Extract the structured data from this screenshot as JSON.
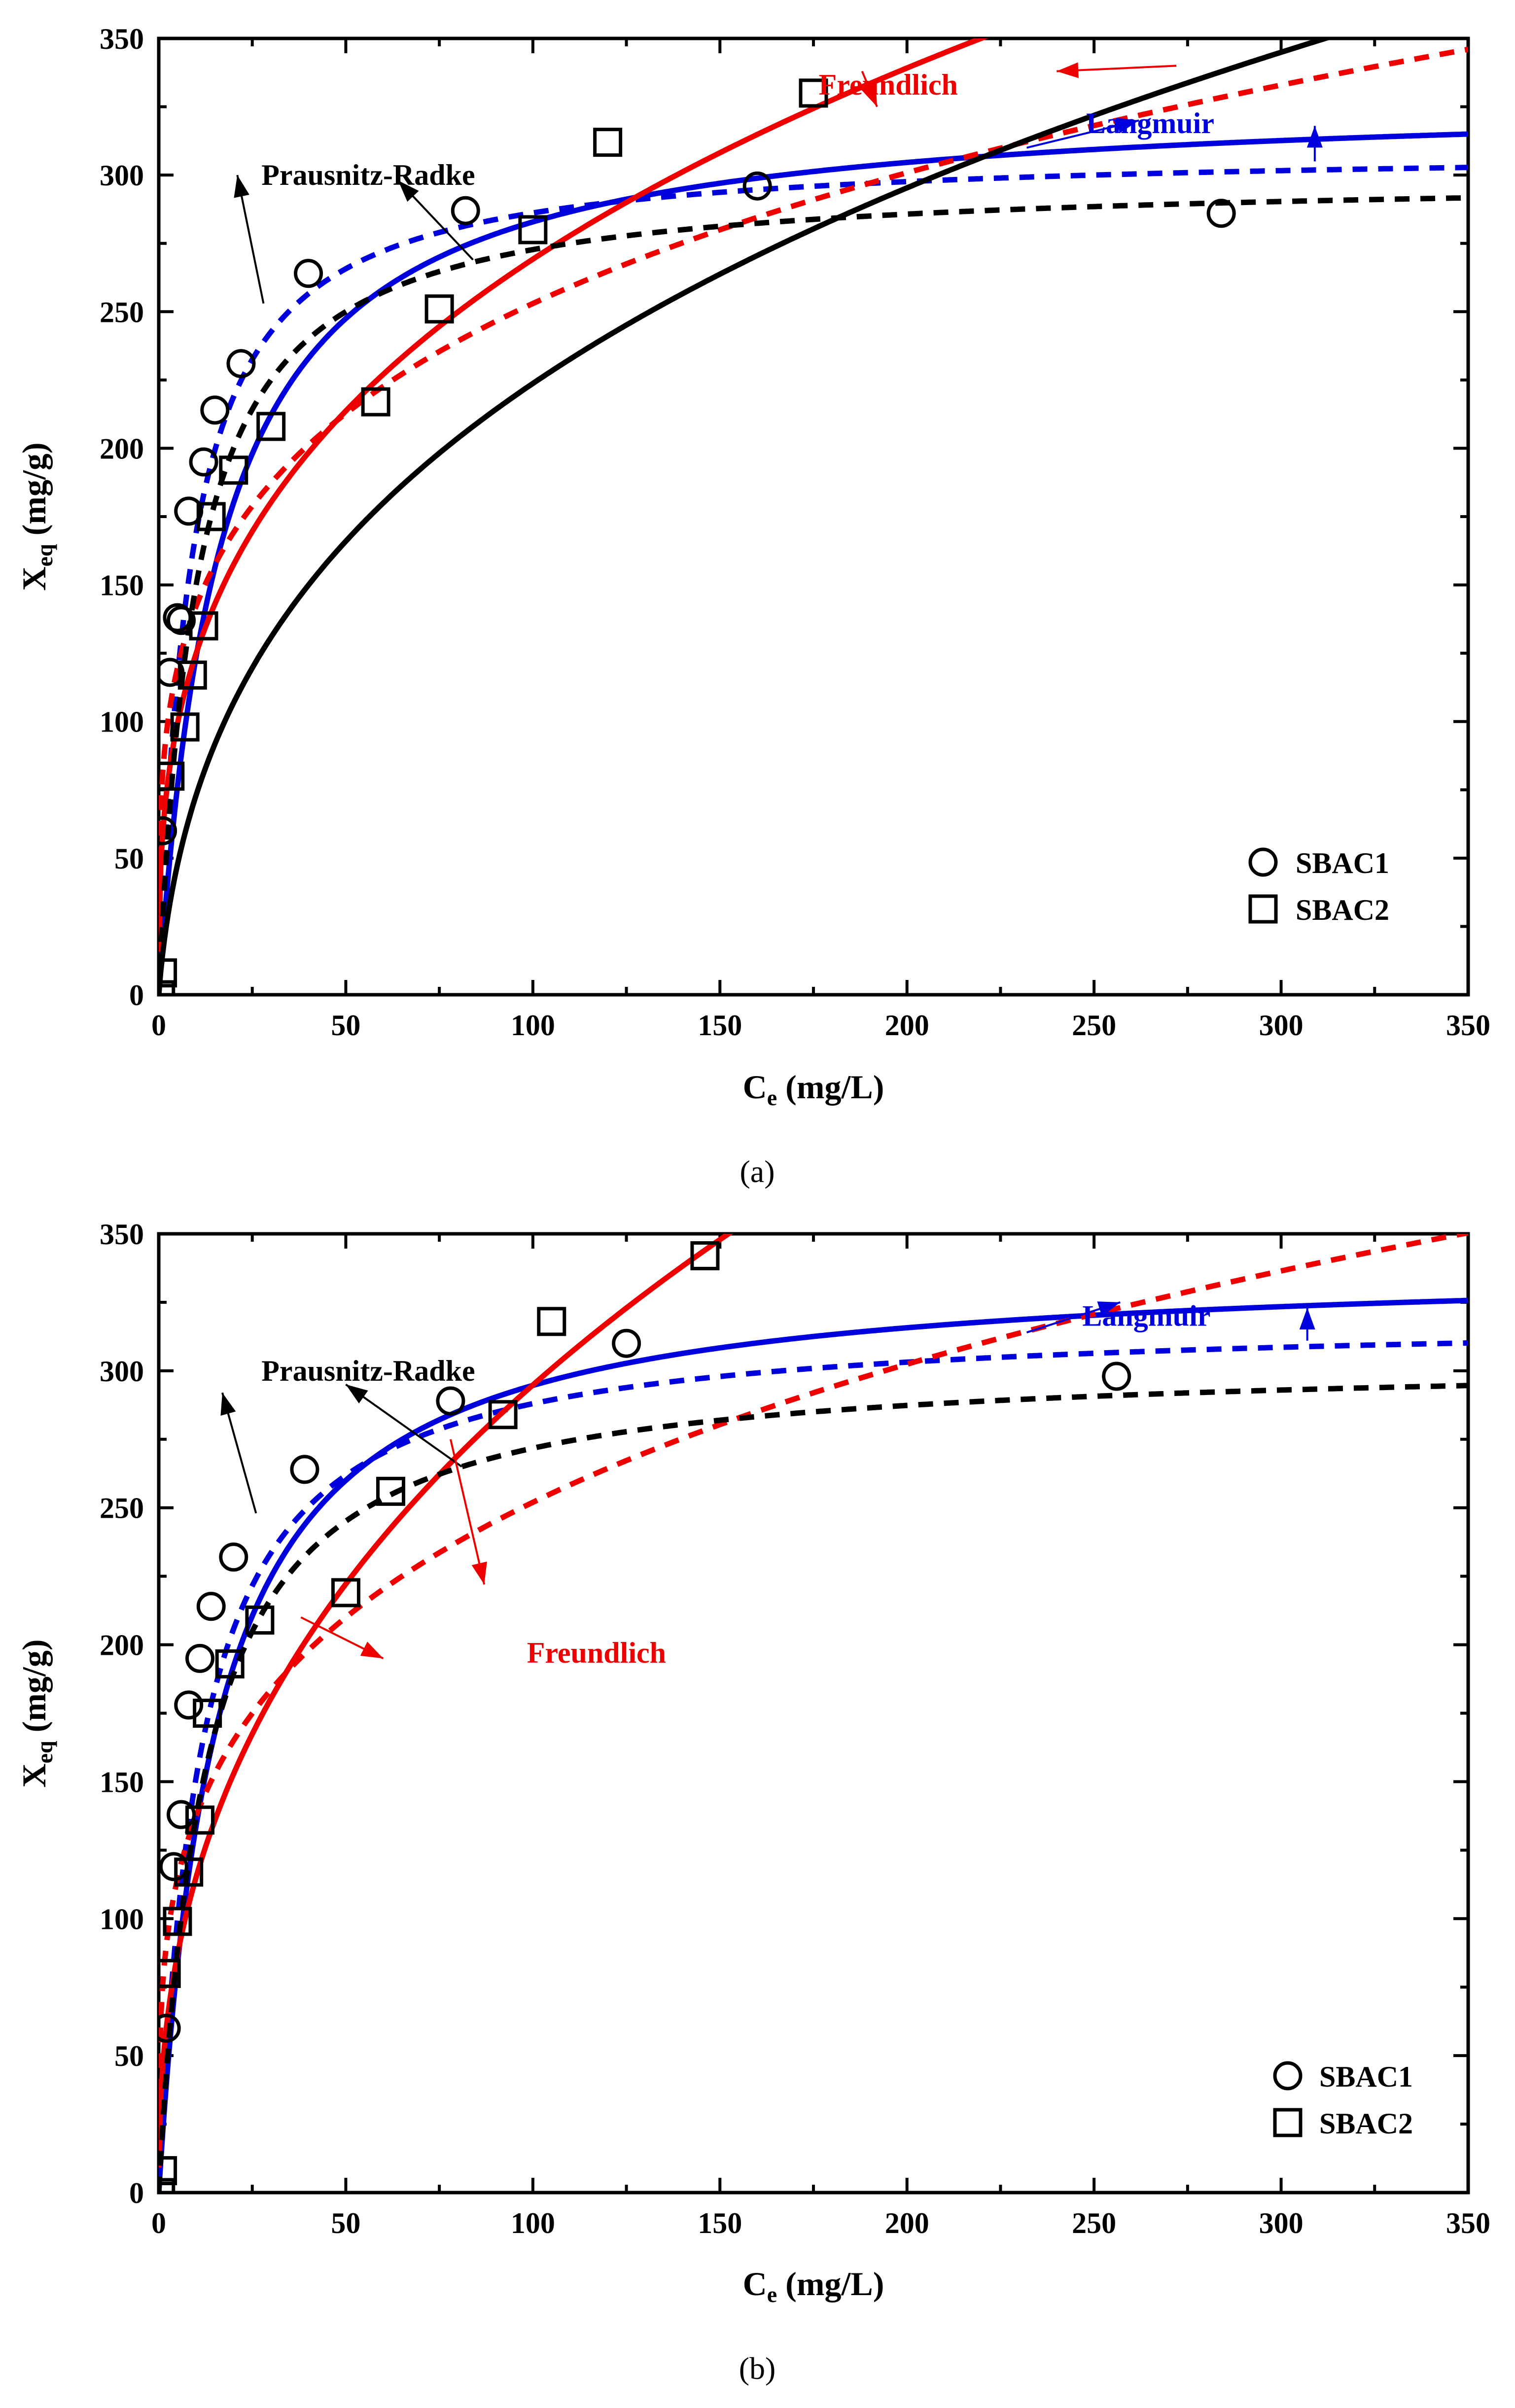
{
  "chart_data": [
    {
      "type": "scatter",
      "panel_label": "(a)",
      "xlabel": "Ce (mg/L)",
      "xlabel_main": "C",
      "xlabel_sub": "e",
      "xlabel_unit": " (mg/L)",
      "ylabel": "Xeq (mg/g)",
      "ylabel_main": "X",
      "ylabel_sub": "eq",
      "ylabel_unit": " (mg/g)",
      "xlim": [
        0,
        350
      ],
      "ylim": [
        0,
        350
      ],
      "xticks": [
        "0",
        "50",
        "100",
        "150",
        "200",
        "250",
        "300",
        "350"
      ],
      "yticks": [
        "0",
        "50",
        "100",
        "150",
        "200",
        "250",
        "300",
        "350"
      ],
      "legend_position": "bottom-right",
      "series": [
        {
          "name": "SBAC1",
          "kind": "points",
          "marker": "circle",
          "color": "#000000",
          "x": [
            1,
            3,
            5,
            6,
            8,
            12,
            15,
            22,
            40,
            82,
            160,
            284
          ],
          "y": [
            60,
            118,
            138,
            137,
            177,
            195,
            214,
            231,
            264,
            287,
            296,
            286
          ]
        },
        {
          "name": "SBAC2",
          "kind": "points",
          "marker": "square",
          "color": "#000000",
          "x": [
            0.5,
            1,
            3,
            7,
            9,
            12,
            14,
            20,
            30,
            58,
            75,
            100,
            120,
            175
          ],
          "y": [
            0,
            8,
            80,
            98,
            117,
            135,
            175,
            192,
            208,
            217,
            251,
            280,
            312,
            330
          ]
        },
        {
          "name": "Langmuir fit SBAC1",
          "kind": "langmuir",
          "style": "dashed",
          "color": "#0000dd",
          "qm": 310,
          "KL": 0.12
        },
        {
          "name": "Langmuir fit SBAC2",
          "kind": "langmuir",
          "style": "solid",
          "color": "#0000dd",
          "qm": 330,
          "KL": 0.06
        },
        {
          "name": "Freundlich fit SBAC1",
          "kind": "freundlich",
          "style": "dashed",
          "color": "#ee0000",
          "KF": 80,
          "n": 4
        },
        {
          "name": "Freundlich fit SBAC2",
          "kind": "freundlich",
          "style": "solid",
          "color": "#ee0000",
          "KF": 58,
          "n": 3
        },
        {
          "name": "Prausnitz-Radke fit SBAC1",
          "kind": "radke",
          "style": "dashed",
          "color": "#000000",
          "a": 30,
          "r": 0.1,
          "beta": 1.0
        },
        {
          "name": "Prausnitz-Radke fit SBAC2",
          "kind": "radke",
          "style": "solid",
          "color": "#000000",
          "a": 20,
          "r": 0.38,
          "beta": 0.66
        }
      ],
      "annotations": [
        {
          "text": "Prausnitz-Radke",
          "color": "#000000",
          "at": [
            56,
            300
          ]
        },
        {
          "text": "Freundlich",
          "color": "#ee0000",
          "at": [
            195,
            333
          ]
        },
        {
          "text": "Langmuir",
          "color": "#0000dd",
          "at": [
            265,
            319
          ]
        }
      ],
      "arrows": [
        {
          "color": "#000000",
          "from": [
            28,
            253
          ],
          "to": [
            21,
            300
          ]
        },
        {
          "color": "#000000",
          "from": [
            84,
            269
          ],
          "to": [
            64,
            298
          ]
        },
        {
          "color": "#ee0000",
          "from": [
            188,
            338
          ],
          "to": [
            192,
            325
          ]
        },
        {
          "color": "#ee0000",
          "from": [
            272,
            340
          ],
          "to": [
            240,
            338
          ]
        },
        {
          "color": "#0000dd",
          "from": [
            232,
            310
          ],
          "to": [
            262,
            320
          ]
        },
        {
          "color": "#0000dd",
          "from": [
            309,
            305
          ],
          "to": [
            309,
            318
          ]
        }
      ]
    },
    {
      "type": "scatter",
      "panel_label": "(b)",
      "xlabel": "Ce (mg/L)",
      "xlabel_main": "C",
      "xlabel_sub": "e",
      "xlabel_unit": " (mg/L)",
      "ylabel": "Xeq (mg/g)",
      "ylabel_main": "X",
      "ylabel_sub": "eq",
      "ylabel_unit": " (mg/g)",
      "xlim": [
        0,
        350
      ],
      "ylim": [
        0,
        350
      ],
      "xticks": [
        "0",
        "50",
        "100",
        "150",
        "200",
        "250",
        "300",
        "350"
      ],
      "yticks": [
        "0",
        "50",
        "100",
        "150",
        "200",
        "250",
        "300",
        "350"
      ],
      "legend_position": "bottom-right",
      "series": [
        {
          "name": "SBAC1",
          "kind": "points",
          "marker": "circle",
          "color": "#000000",
          "x": [
            2,
            4,
            6,
            8,
            11,
            14,
            20,
            39,
            78,
            125,
            256
          ],
          "y": [
            60,
            119,
            138,
            178,
            195,
            214,
            232,
            264,
            289,
            310,
            298
          ]
        },
        {
          "name": "SBAC2",
          "kind": "points",
          "marker": "square",
          "color": "#000000",
          "x": [
            0.5,
            1,
            2,
            5,
            8,
            11,
            13,
            19,
            27,
            50,
            62,
            92,
            105,
            146
          ],
          "y": [
            0,
            8,
            80,
            99,
            117,
            136,
            175,
            193,
            209,
            219,
            256,
            284,
            318,
            342
          ]
        },
        {
          "name": "Langmuir fit SBAC1",
          "kind": "langmuir",
          "style": "dashed",
          "color": "#0000dd",
          "qm": 320,
          "KL": 0.09
        },
        {
          "name": "Langmuir fit SBAC2",
          "kind": "langmuir",
          "style": "solid",
          "color": "#0000dd",
          "qm": 340,
          "KL": 0.065
        },
        {
          "name": "Freundlich fit SBAC1",
          "kind": "freundlich",
          "style": "dashed",
          "color": "#ee0000",
          "KF": 75,
          "n": 3.8
        },
        {
          "name": "Freundlich fit SBAC2",
          "kind": "freundlich",
          "style": "solid",
          "color": "#ee0000",
          "KF": 45,
          "n": 2.45
        },
        {
          "name": "Prausnitz-Radke fit SBAC1",
          "kind": "radke",
          "style": "dashed",
          "color": "#000000",
          "a": 25,
          "r": 0.082,
          "beta": 1.0
        }
      ],
      "annotations": [
        {
          "text": "Prausnitz-Radke",
          "color": "#000000",
          "at": [
            56,
            300
          ]
        },
        {
          "text": "Freundlich",
          "color": "#ee0000",
          "at": [
            117,
            197
          ]
        },
        {
          "text": "Langmuir",
          "color": "#0000dd",
          "at": [
            264,
            320
          ]
        }
      ],
      "arrows": [
        {
          "color": "#000000",
          "from": [
            26,
            248
          ],
          "to": [
            17,
            292
          ]
        },
        {
          "color": "#000000",
          "from": [
            81,
            265
          ],
          "to": [
            50,
            295
          ]
        },
        {
          "color": "#ee0000",
          "from": [
            38,
            210
          ],
          "to": [
            60,
            195
          ]
        },
        {
          "color": "#ee0000",
          "from": [
            78,
            275
          ],
          "to": [
            87,
            222
          ]
        },
        {
          "color": "#0000dd",
          "from": [
            232,
            314
          ],
          "to": [
            257,
            325
          ]
        },
        {
          "color": "#0000dd",
          "from": [
            307,
            311
          ],
          "to": [
            307,
            323
          ]
        }
      ]
    }
  ]
}
